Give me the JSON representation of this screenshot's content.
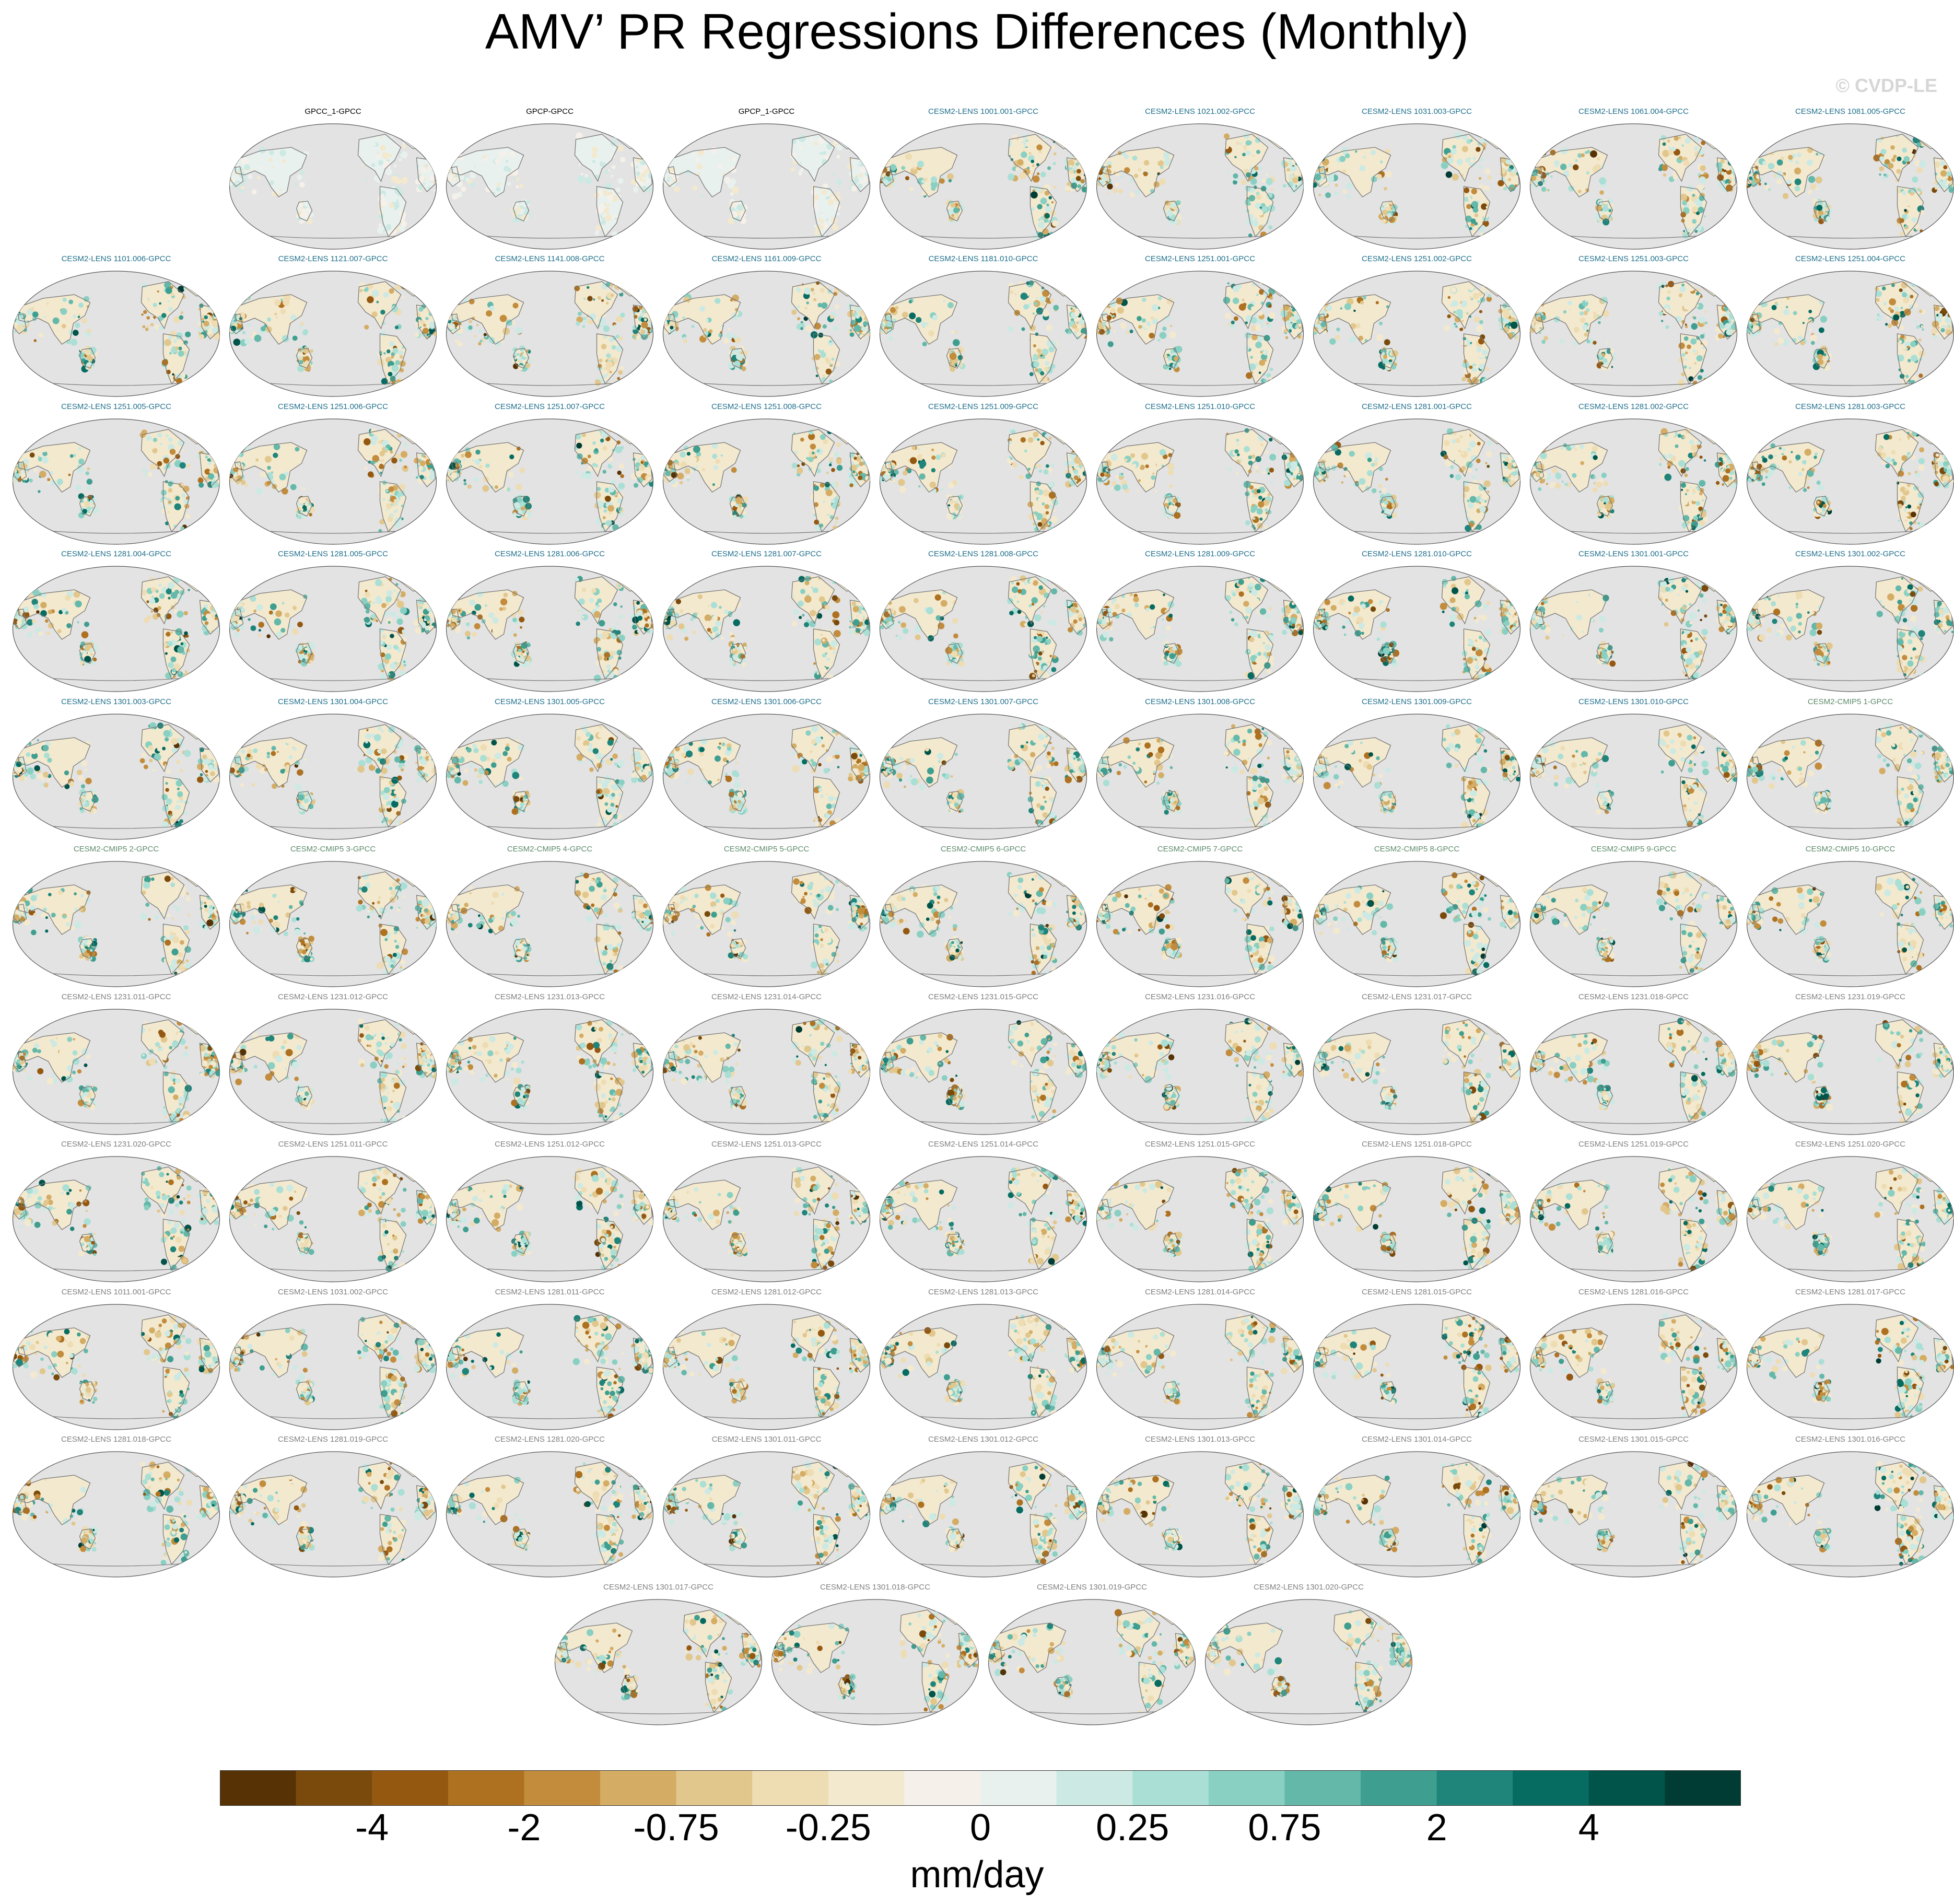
{
  "title": "AMV’ PR Regressions Differences (Monthly)",
  "watermark": "© CVDP-LE",
  "colors": {
    "label_obs": "#000000",
    "label_lens": "#1f6f8b",
    "label_cmip": "#5d8a6a",
    "label_gray": "#808080",
    "map_bg": "#e3e3e3",
    "coast": "#777777"
  },
  "panels": [
    {
      "label": "GPCC_1-GPCC",
      "group": "obs"
    },
    {
      "label": "GPCP-GPCC",
      "group": "obs"
    },
    {
      "label": "GPCP_1-GPCC",
      "group": "obs"
    },
    {
      "label": "CESM2-LENS 1001.001-GPCC",
      "group": "lens"
    },
    {
      "label": "CESM2-LENS 1021.002-GPCC",
      "group": "lens"
    },
    {
      "label": "CESM2-LENS 1031.003-GPCC",
      "group": "lens"
    },
    {
      "label": "CESM2-LENS 1061.004-GPCC",
      "group": "lens"
    },
    {
      "label": "CESM2-LENS 1081.005-GPCC",
      "group": "lens"
    },
    {
      "label": "CESM2-LENS 1101.006-GPCC",
      "group": "lens"
    },
    {
      "label": "CESM2-LENS 1121.007-GPCC",
      "group": "lens"
    },
    {
      "label": "CESM2-LENS 1141.008-GPCC",
      "group": "lens"
    },
    {
      "label": "CESM2-LENS 1161.009-GPCC",
      "group": "lens"
    },
    {
      "label": "CESM2-LENS 1181.010-GPCC",
      "group": "lens"
    },
    {
      "label": "CESM2-LENS 1251.001-GPCC",
      "group": "lens"
    },
    {
      "label": "CESM2-LENS 1251.002-GPCC",
      "group": "lens"
    },
    {
      "label": "CESM2-LENS 1251.003-GPCC",
      "group": "lens"
    },
    {
      "label": "CESM2-LENS 1251.004-GPCC",
      "group": "lens"
    },
    {
      "label": "CESM2-LENS 1251.005-GPCC",
      "group": "lens"
    },
    {
      "label": "CESM2-LENS 1251.006-GPCC",
      "group": "lens"
    },
    {
      "label": "CESM2-LENS 1251.007-GPCC",
      "group": "lens"
    },
    {
      "label": "CESM2-LENS 1251.008-GPCC",
      "group": "lens"
    },
    {
      "label": "CESM2-LENS 1251.009-GPCC",
      "group": "lens"
    },
    {
      "label": "CESM2-LENS 1251.010-GPCC",
      "group": "lens"
    },
    {
      "label": "CESM2-LENS 1281.001-GPCC",
      "group": "lens"
    },
    {
      "label": "CESM2-LENS 1281.002-GPCC",
      "group": "lens"
    },
    {
      "label": "CESM2-LENS 1281.003-GPCC",
      "group": "lens"
    },
    {
      "label": "CESM2-LENS 1281.004-GPCC",
      "group": "lens"
    },
    {
      "label": "CESM2-LENS 1281.005-GPCC",
      "group": "lens"
    },
    {
      "label": "CESM2-LENS 1281.006-GPCC",
      "group": "lens"
    },
    {
      "label": "CESM2-LENS 1281.007-GPCC",
      "group": "lens"
    },
    {
      "label": "CESM2-LENS 1281.008-GPCC",
      "group": "lens"
    },
    {
      "label": "CESM2-LENS 1281.009-GPCC",
      "group": "lens"
    },
    {
      "label": "CESM2-LENS 1281.010-GPCC",
      "group": "lens"
    },
    {
      "label": "CESM2-LENS 1301.001-GPCC",
      "group": "lens"
    },
    {
      "label": "CESM2-LENS 1301.002-GPCC",
      "group": "lens"
    },
    {
      "label": "CESM2-LENS 1301.003-GPCC",
      "group": "lens"
    },
    {
      "label": "CESM2-LENS 1301.004-GPCC",
      "group": "lens"
    },
    {
      "label": "CESM2-LENS 1301.005-GPCC",
      "group": "lens"
    },
    {
      "label": "CESM2-LENS 1301.006-GPCC",
      "group": "lens"
    },
    {
      "label": "CESM2-LENS 1301.007-GPCC",
      "group": "lens"
    },
    {
      "label": "CESM2-LENS 1301.008-GPCC",
      "group": "lens"
    },
    {
      "label": "CESM2-LENS 1301.009-GPCC",
      "group": "lens"
    },
    {
      "label": "CESM2-LENS 1301.010-GPCC",
      "group": "lens"
    },
    {
      "label": "CESM2-CMIP5 1-GPCC",
      "group": "cmip"
    },
    {
      "label": "CESM2-CMIP5 2-GPCC",
      "group": "cmip"
    },
    {
      "label": "CESM2-CMIP5 3-GPCC",
      "group": "cmip"
    },
    {
      "label": "CESM2-CMIP5 4-GPCC",
      "group": "cmip"
    },
    {
      "label": "CESM2-CMIP5 5-GPCC",
      "group": "cmip"
    },
    {
      "label": "CESM2-CMIP5 6-GPCC",
      "group": "cmip"
    },
    {
      "label": "CESM2-CMIP5 7-GPCC",
      "group": "cmip"
    },
    {
      "label": "CESM2-CMIP5 8-GPCC",
      "group": "cmip"
    },
    {
      "label": "CESM2-CMIP5 9-GPCC",
      "group": "cmip"
    },
    {
      "label": "CESM2-CMIP5 10-GPCC",
      "group": "cmip"
    },
    {
      "label": "CESM2-LENS 1231.011-GPCC",
      "group": "gray"
    },
    {
      "label": "CESM2-LENS 1231.012-GPCC",
      "group": "gray"
    },
    {
      "label": "CESM2-LENS 1231.013-GPCC",
      "group": "gray"
    },
    {
      "label": "CESM2-LENS 1231.014-GPCC",
      "group": "gray"
    },
    {
      "label": "CESM2-LENS 1231.015-GPCC",
      "group": "gray"
    },
    {
      "label": "CESM2-LENS 1231.016-GPCC",
      "group": "gray"
    },
    {
      "label": "CESM2-LENS 1231.017-GPCC",
      "group": "gray"
    },
    {
      "label": "CESM2-LENS 1231.018-GPCC",
      "group": "gray"
    },
    {
      "label": "CESM2-LENS 1231.019-GPCC",
      "group": "gray"
    },
    {
      "label": "CESM2-LENS 1231.020-GPCC",
      "group": "gray"
    },
    {
      "label": "CESM2-LENS 1251.011-GPCC",
      "group": "gray"
    },
    {
      "label": "CESM2-LENS 1251.012-GPCC",
      "group": "gray"
    },
    {
      "label": "CESM2-LENS 1251.013-GPCC",
      "group": "gray"
    },
    {
      "label": "CESM2-LENS 1251.014-GPCC",
      "group": "gray"
    },
    {
      "label": "CESM2-LENS 1251.015-GPCC",
      "group": "gray"
    },
    {
      "label": "CESM2-LENS 1251.018-GPCC",
      "group": "gray"
    },
    {
      "label": "CESM2-LENS 1251.019-GPCC",
      "group": "gray"
    },
    {
      "label": "CESM2-LENS 1251.020-GPCC",
      "group": "gray"
    },
    {
      "label": "CESM2-LENS 1011.001-GPCC",
      "group": "gray"
    },
    {
      "label": "CESM2-LENS 1031.002-GPCC",
      "group": "gray"
    },
    {
      "label": "CESM2-LENS 1281.011-GPCC",
      "group": "gray"
    },
    {
      "label": "CESM2-LENS 1281.012-GPCC",
      "group": "gray"
    },
    {
      "label": "CESM2-LENS 1281.013-GPCC",
      "group": "gray"
    },
    {
      "label": "CESM2-LENS 1281.014-GPCC",
      "group": "gray"
    },
    {
      "label": "CESM2-LENS 1281.015-GPCC",
      "group": "gray"
    },
    {
      "label": "CESM2-LENS 1281.016-GPCC",
      "group": "gray"
    },
    {
      "label": "CESM2-LENS 1281.017-GPCC",
      "group": "gray"
    },
    {
      "label": "CESM2-LENS 1281.018-GPCC",
      "group": "gray"
    },
    {
      "label": "CESM2-LENS 1281.019-GPCC",
      "group": "gray"
    },
    {
      "label": "CESM2-LENS 1281.020-GPCC",
      "group": "gray"
    },
    {
      "label": "CESM2-LENS 1301.011-GPCC",
      "group": "gray"
    },
    {
      "label": "CESM2-LENS 1301.012-GPCC",
      "group": "gray"
    },
    {
      "label": "CESM2-LENS 1301.013-GPCC",
      "group": "gray"
    },
    {
      "label": "CESM2-LENS 1301.014-GPCC",
      "group": "gray"
    },
    {
      "label": "CESM2-LENS 1301.015-GPCC",
      "group": "gray"
    },
    {
      "label": "CESM2-LENS 1301.016-GPCC",
      "group": "gray"
    },
    {
      "label": "CESM2-LENS 1301.017-GPCC",
      "group": "gray"
    },
    {
      "label": "CESM2-LENS 1301.018-GPCC",
      "group": "gray"
    },
    {
      "label": "CESM2-LENS 1301.019-GPCC",
      "group": "gray"
    },
    {
      "label": "CESM2-LENS 1301.020-GPCC",
      "group": "gray"
    }
  ],
  "colorbar": {
    "colors": [
      "#563205",
      "#7a4a0c",
      "#955811",
      "#ad7120",
      "#c28c3c",
      "#d4ac64",
      "#e2c78d",
      "#eedcb2",
      "#f3e9cf",
      "#f5f1ea",
      "#e9f1ef",
      "#cde9e3",
      "#aadfd5",
      "#89d0c2",
      "#64b8a9",
      "#3e9e8f",
      "#1f8479",
      "#066b60",
      "#00544a",
      "#003c33"
    ],
    "tick_labels": [
      "-4",
      "-2",
      "-0.75",
      "-0.25",
      "0",
      "0.25",
      "0.75",
      "2",
      "4"
    ],
    "units": "mm/day"
  }
}
